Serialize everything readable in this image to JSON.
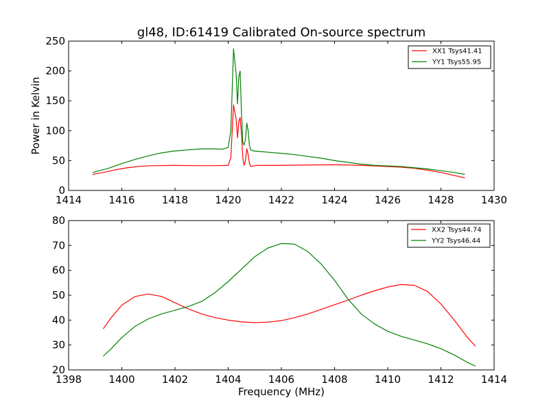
{
  "chart_data": [
    {
      "type": "line",
      "title": "gl48, ID:61419 Calibrated On-source spectrum",
      "xlabel": "",
      "ylabel": "Power in Kelvin",
      "xlim": [
        1414,
        1430
      ],
      "ylim": [
        0,
        250
      ],
      "xticks": [
        1414,
        1416,
        1418,
        1420,
        1422,
        1424,
        1426,
        1428,
        1430
      ],
      "yticks": [
        0,
        50,
        100,
        150,
        200,
        250
      ],
      "legend": "top-right",
      "grid": false,
      "series": [
        {
          "name": "XX1 Tsys41.41",
          "color": "#ff0000",
          "x": [
            1414.9,
            1415.3,
            1415.7,
            1416.2,
            1416.7,
            1417.2,
            1418.0,
            1418.8,
            1419.5,
            1420.0,
            1420.1,
            1420.2,
            1420.3,
            1420.35,
            1420.4,
            1420.45,
            1420.5,
            1420.55,
            1420.6,
            1420.65,
            1420.7,
            1420.75,
            1420.8,
            1420.85,
            1420.95,
            1421.1,
            1421.5,
            1422.0,
            1423.0,
            1424.0,
            1424.5,
            1425.0,
            1425.5,
            1426.0,
            1426.5,
            1427.0,
            1427.5,
            1428.0,
            1428.5,
            1428.9
          ],
          "y": [
            27,
            30,
            34,
            38,
            40.5,
            41.5,
            42,
            41.5,
            41.5,
            42,
            55,
            143,
            120,
            88,
            115,
            122,
            95,
            55,
            42,
            50,
            70,
            60,
            45,
            40,
            41,
            42,
            42,
            42,
            42.5,
            43,
            42.5,
            42,
            41,
            40,
            39,
            37,
            34,
            30,
            25,
            21
          ]
        },
        {
          "name": "YY1 Tsys55.95",
          "color": "#008000",
          "x": [
            1414.9,
            1415.5,
            1416.0,
            1416.5,
            1417.0,
            1417.5,
            1418.0,
            1418.5,
            1419.0,
            1419.5,
            1419.8,
            1420.0,
            1420.1,
            1420.2,
            1420.3,
            1420.35,
            1420.4,
            1420.45,
            1420.5,
            1420.55,
            1420.6,
            1420.65,
            1420.7,
            1420.75,
            1420.8,
            1420.85,
            1420.95,
            1421.1,
            1421.5,
            1422.0,
            1422.5,
            1423.0,
            1423.5,
            1424.0,
            1424.5,
            1425.0,
            1425.5,
            1426.0,
            1426.5,
            1427.0,
            1427.5,
            1428.0,
            1428.5,
            1428.9
          ],
          "y": [
            30,
            37,
            45,
            52,
            58,
            63,
            66,
            68,
            69.5,
            69.5,
            69,
            72,
            100,
            237,
            195,
            145,
            190,
            200,
            130,
            80,
            76,
            85,
            113,
            100,
            75,
            68,
            66,
            65.5,
            64,
            62,
            60,
            57,
            54,
            50,
            47,
            44,
            42,
            41,
            40,
            38,
            36,
            33,
            30,
            27
          ]
        }
      ]
    },
    {
      "type": "line",
      "title": "",
      "xlabel": "Frequency (MHz)",
      "ylabel": "",
      "xlim": [
        1398,
        1414
      ],
      "ylim": [
        20,
        80
      ],
      "xticks": [
        1398,
        1400,
        1402,
        1404,
        1406,
        1408,
        1410,
        1412,
        1414
      ],
      "yticks": [
        20,
        30,
        40,
        50,
        60,
        70,
        80
      ],
      "legend": "top-right",
      "grid": false,
      "series": [
        {
          "name": "XX2 Tsys44.74",
          "color": "#ff0000",
          "x": [
            1399.3,
            1399.6,
            1400.0,
            1400.5,
            1401.0,
            1401.5,
            1402.0,
            1402.5,
            1403.0,
            1403.5,
            1404.0,
            1404.5,
            1405.0,
            1405.5,
            1406.0,
            1406.5,
            1407.0,
            1407.5,
            1408.0,
            1408.5,
            1409.0,
            1409.5,
            1410.0,
            1410.5,
            1411.0,
            1411.5,
            1412.0,
            1412.5,
            1413.0,
            1413.3
          ],
          "y": [
            36.5,
            41,
            46,
            49.5,
            50.5,
            49.5,
            47,
            44.5,
            42.5,
            41,
            40,
            39.3,
            39,
            39.2,
            39.8,
            41,
            42.5,
            44.3,
            46.2,
            48,
            50,
            51.8,
            53.3,
            54.3,
            54,
            51.5,
            46.5,
            40,
            33,
            29.5
          ]
        },
        {
          "name": "YY2 Tsys46.44",
          "color": "#008000",
          "x": [
            1399.3,
            1399.6,
            1400.0,
            1400.5,
            1401.0,
            1401.5,
            1402.0,
            1402.5,
            1403.0,
            1403.5,
            1404.0,
            1404.5,
            1405.0,
            1405.5,
            1406.0,
            1406.5,
            1407.0,
            1407.5,
            1408.0,
            1408.5,
            1409.0,
            1409.5,
            1410.0,
            1410.5,
            1411.0,
            1411.5,
            1412.0,
            1412.5,
            1413.0,
            1413.3
          ],
          "y": [
            25.5,
            28.5,
            33,
            37.5,
            40.5,
            42.5,
            44,
            45.5,
            47.5,
            51,
            55.5,
            60.5,
            65.5,
            69,
            70.8,
            70.5,
            67.5,
            62.5,
            56,
            48.5,
            42.5,
            38.5,
            35.5,
            33.5,
            32,
            30.5,
            28.5,
            26,
            23,
            21.5
          ]
        }
      ]
    }
  ]
}
